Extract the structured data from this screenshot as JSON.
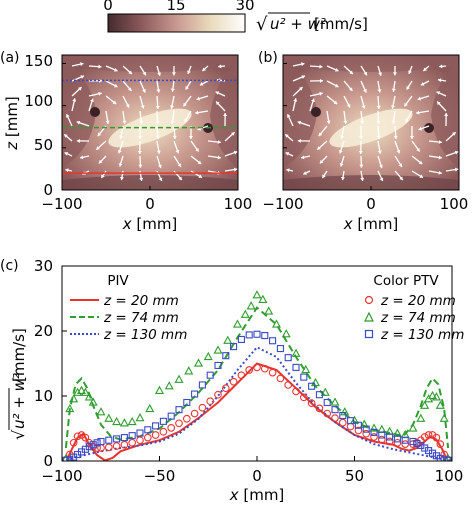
{
  "colorbar": {
    "ticks": [
      "0",
      "15",
      "30"
    ],
    "label_expr": "u² + w²",
    "label_unit": "[mm/s]",
    "range": [
      0,
      30
    ],
    "colors": [
      "#452a2e",
      "#8d5b5c",
      "#c99890",
      "#eadbbd",
      "#ffffff"
    ]
  },
  "panel_a": {
    "letter": "(a)",
    "xlabel_var": "x",
    "xlabel_unit": "[mm]",
    "ylabel_var": "z",
    "ylabel_unit": "[mm]",
    "xticks": [
      "−100",
      "0",
      "100"
    ],
    "yticks": [
      "0",
      "50",
      "100",
      "150"
    ],
    "lines": [
      {
        "z": 20,
        "color": "#e8342f",
        "style": "solid"
      },
      {
        "z": 74,
        "color": "#2f9d2f",
        "style": "dashed"
      },
      {
        "z": 130,
        "color": "#3b49c6",
        "style": "dotted"
      }
    ]
  },
  "panel_b": {
    "letter": "(b)",
    "xlabel_var": "x",
    "xlabel_unit": "[mm]",
    "xticks": [
      "−100",
      "0",
      "100"
    ]
  },
  "chart_data": {
    "type": "line",
    "panel": "(c)",
    "xlabel_var": "x",
    "xlabel_unit": "[mm]",
    "ylabel_expr": "u² + w²",
    "ylabel_unit": "[mm/s]",
    "xlim": [
      -100,
      100
    ],
    "ylim": [
      0,
      30
    ],
    "xticks": [
      "−100",
      "−50",
      "0",
      "50",
      "100"
    ],
    "yticks": [
      "0",
      "10",
      "20",
      "30"
    ],
    "legend_left_title": "PIV",
    "legend_right_title": "Color PTV",
    "legend_labels": [
      "z = 20 mm",
      "z = 74 mm",
      "z = 130 mm"
    ],
    "piv": [
      {
        "name": "z = 20 mm",
        "color": "#e8342f",
        "style": "solid",
        "x": [
          -97,
          -95,
          -92,
          -89,
          -86,
          -82,
          -78,
          -74,
          -70,
          -60,
          -50,
          -40,
          -30,
          -20,
          -10,
          0,
          10,
          20,
          30,
          40,
          50,
          60,
          70,
          74,
          78,
          82,
          86,
          89,
          92,
          95,
          97
        ],
        "y": [
          0.5,
          1.8,
          3.6,
          4.2,
          2.5,
          0.9,
          0.1,
          0.5,
          1.5,
          2.5,
          3.2,
          4.5,
          6.6,
          9.0,
          12.0,
          15.0,
          14.0,
          11.2,
          8.3,
          6.0,
          4.0,
          3.0,
          2.5,
          1.9,
          1.6,
          2.0,
          3.0,
          3.8,
          3.3,
          1.8,
          0.5
        ]
      },
      {
        "name": "z = 74 mm",
        "color": "#2f9d2f",
        "style": "dashed",
        "x": [
          -98,
          -96,
          -93,
          -90,
          -87,
          -84,
          -80,
          -75,
          -70,
          -60,
          -50,
          -40,
          -30,
          -20,
          -10,
          0,
          10,
          20,
          30,
          40,
          50,
          60,
          70,
          75,
          80,
          84,
          87,
          90,
          93,
          96,
          98
        ],
        "y": [
          2.0,
          8.0,
          11.8,
          12.7,
          11.2,
          8.5,
          5.6,
          3.8,
          3.3,
          3.8,
          5.0,
          7.5,
          10.5,
          14.0,
          19.0,
          23.6,
          21.0,
          16.0,
          11.5,
          8.5,
          6.0,
          4.8,
          4.2,
          3.8,
          5.6,
          8.5,
          11.2,
          12.7,
          11.8,
          8.0,
          2.0
        ]
      },
      {
        "name": "z = 130 mm",
        "color": "#3b49c6",
        "style": "dotted",
        "x": [
          -100,
          -90,
          -80,
          -70,
          -60,
          -50,
          -40,
          -30,
          -20,
          -10,
          0,
          10,
          20,
          30,
          40,
          50,
          60,
          70,
          80,
          90,
          100
        ],
        "y": [
          0.0,
          0.8,
          1.5,
          2.0,
          2.4,
          3.0,
          4.2,
          6.5,
          10.0,
          14.0,
          17.5,
          16.0,
          12.0,
          8.5,
          6.0,
          4.0,
          2.6,
          1.8,
          1.2,
          0.6,
          0.0
        ]
      }
    ],
    "ptv": [
      {
        "name": "z = 20 mm",
        "color": "#e8342f",
        "marker": "circle",
        "x": [
          -98,
          -96,
          -94,
          -92,
          -90,
          -88,
          -86,
          -84,
          -82,
          -80,
          -76,
          -72,
          -68,
          -64,
          -60,
          -56,
          -52,
          -48,
          -44,
          -40,
          -36,
          -32,
          -28,
          -24,
          -20,
          -16,
          -12,
          -8,
          -4,
          0,
          4,
          8,
          12,
          16,
          20,
          24,
          28,
          32,
          36,
          40,
          44,
          48,
          52,
          56,
          60,
          64,
          68,
          72,
          76,
          80,
          82,
          84,
          86,
          88,
          90,
          92,
          94,
          96,
          98
        ],
        "y": [
          0.2,
          1.0,
          2.8,
          3.8,
          4.0,
          3.6,
          2.8,
          2.2,
          2.0,
          2.0,
          2.1,
          2.3,
          2.5,
          2.8,
          3.2,
          3.6,
          4.0,
          4.5,
          5.1,
          5.8,
          6.5,
          7.3,
          8.2,
          9.2,
          10.2,
          11.2,
          12.2,
          13.2,
          14.0,
          14.4,
          14.2,
          13.6,
          12.7,
          11.7,
          10.7,
          9.8,
          8.9,
          8.1,
          7.3,
          6.6,
          5.9,
          5.3,
          4.7,
          4.2,
          3.7,
          3.3,
          3.0,
          2.8,
          2.6,
          2.6,
          2.8,
          3.2,
          3.7,
          4.0,
          4.0,
          3.6,
          2.6,
          1.0,
          0.2
        ]
      },
      {
        "name": "z = 74 mm",
        "color": "#2f9d2f",
        "marker": "triangle",
        "x": [
          -98,
          -96,
          -94,
          -92,
          -90,
          -88,
          -86,
          -84,
          -80,
          -76,
          -72,
          -68,
          -64,
          -60,
          -55,
          -50,
          -45,
          -40,
          -35,
          -30,
          -25,
          -20,
          -15,
          -10,
          -6,
          -3,
          0,
          3,
          6,
          10,
          15,
          20,
          25,
          30,
          35,
          40,
          45,
          50,
          55,
          60,
          64,
          68,
          72,
          76,
          80,
          84,
          86,
          88,
          90,
          92,
          94,
          96,
          98
        ],
        "y": [
          0.3,
          8.0,
          9.5,
          10.5,
          10.8,
          10.5,
          9.8,
          9.0,
          7.5,
          6.5,
          6.0,
          5.8,
          6.0,
          6.6,
          8.0,
          10.8,
          11.5,
          12.5,
          13.8,
          15.0,
          16.0,
          17.0,
          18.5,
          21.0,
          22.5,
          23.8,
          25.5,
          24.8,
          23.0,
          21.0,
          19.5,
          16.5,
          14.0,
          12.0,
          10.5,
          9.0,
          7.5,
          6.2,
          5.6,
          5.0,
          4.8,
          4.5,
          4.2,
          4.0,
          5.0,
          6.5,
          8.5,
          9.5,
          10.0,
          9.8,
          8.5,
          6.5,
          0.3
        ]
      },
      {
        "name": "z = 130 mm",
        "color": "#3b49c6",
        "marker": "square",
        "x": [
          -98,
          -96,
          -94,
          -92,
          -90,
          -88,
          -86,
          -84,
          -82,
          -80,
          -76,
          -72,
          -68,
          -64,
          -60,
          -56,
          -52,
          -48,
          -44,
          -40,
          -36,
          -32,
          -28,
          -24,
          -20,
          -16,
          -12,
          -8,
          -4,
          0,
          4,
          8,
          12,
          16,
          20,
          24,
          28,
          32,
          36,
          40,
          44,
          48,
          52,
          56,
          60,
          64,
          68,
          72,
          76,
          80,
          82,
          84,
          86,
          88,
          90,
          92,
          94,
          96,
          98
        ],
        "y": [
          0.1,
          0.2,
          0.6,
          1.0,
          1.4,
          1.8,
          2.2,
          2.5,
          2.8,
          3.0,
          3.2,
          3.4,
          3.6,
          3.9,
          4.3,
          4.8,
          5.4,
          6.1,
          6.9,
          7.9,
          9.0,
          10.3,
          11.7,
          13.2,
          14.7,
          16.2,
          17.6,
          18.7,
          19.4,
          19.5,
          19.3,
          18.5,
          17.3,
          15.9,
          14.4,
          12.9,
          11.5,
          10.2,
          9.0,
          7.9,
          7.0,
          6.2,
          5.5,
          4.9,
          4.4,
          4.0,
          3.7,
          3.4,
          3.2,
          3.0,
          2.7,
          2.4,
          2.0,
          1.6,
          1.2,
          0.8,
          0.4,
          0.2,
          0.1
        ]
      }
    ]
  }
}
